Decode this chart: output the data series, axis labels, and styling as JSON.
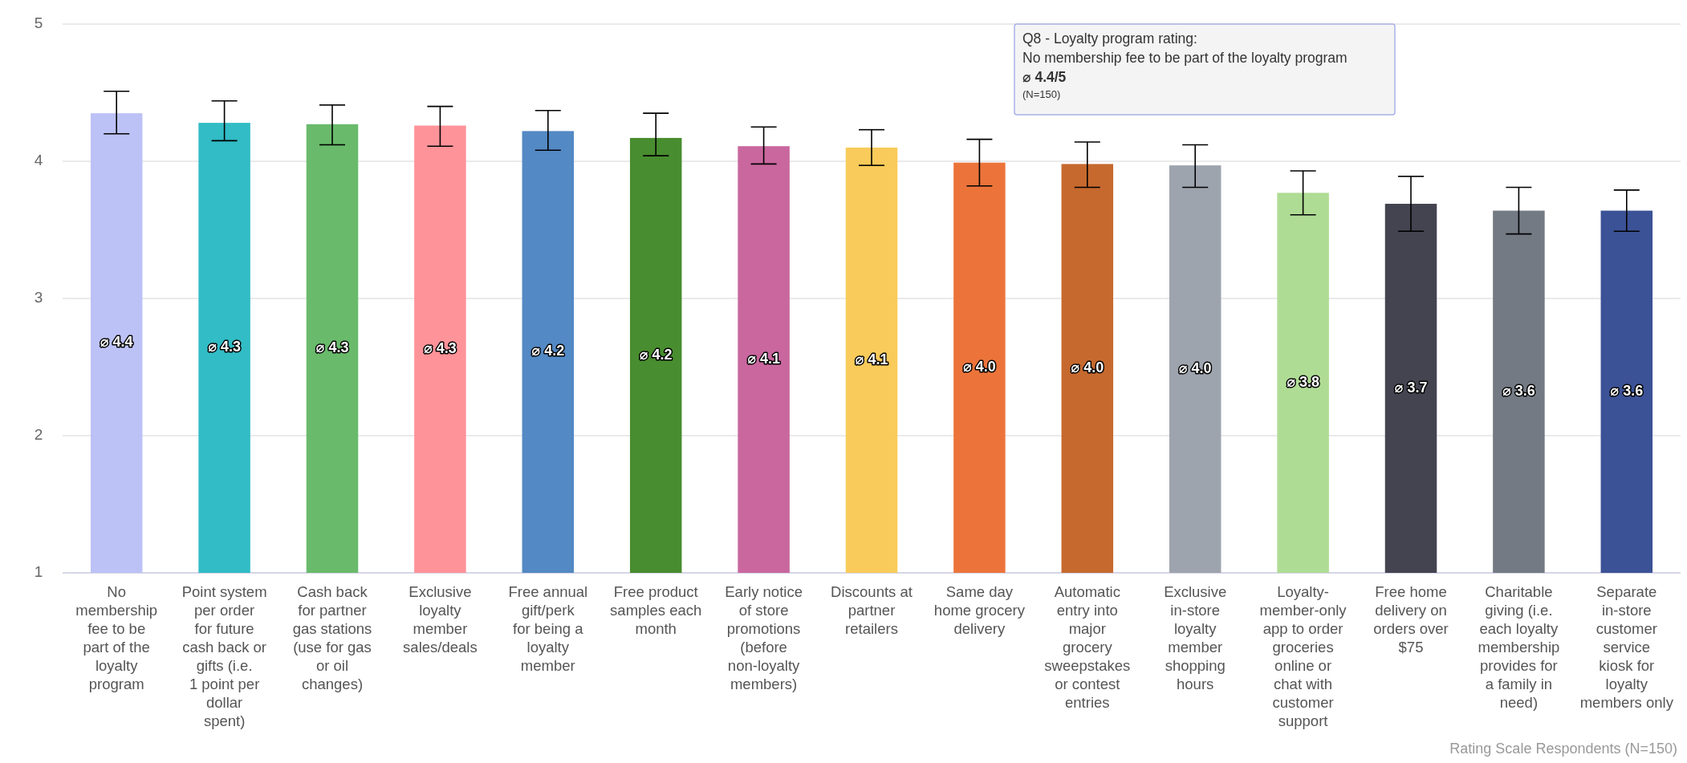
{
  "chart_data": {
    "type": "bar",
    "categories": [
      "No membership fee to be part of the loyalty program",
      "Point system per order for future cash back or gifts (i.e. 1 point per dollar spent)",
      "Cash back for partner gas stations (use for gas or oil changes)",
      "Exclusive loyalty member sales/deals",
      "Free annual gift/perk for being a loyalty member",
      "Free product samples each month",
      "Early notice of store promotions (before non-loyalty members)",
      "Discounts at partner retailers",
      "Same day home grocery delivery",
      "Automatic entry into major grocery sweepstakes or contest entries",
      "Exclusive in-store loyalty member shopping hours",
      "Loyalty-member-only app to order groceries online or chat with customer support",
      "Free home delivery on orders over $75",
      "Charitable giving (i.e. each loyalty membership provides for a family in need)",
      "Separate in-store customer service kiosk for loyalty members only"
    ],
    "values": [
      4.35,
      4.28,
      4.27,
      4.26,
      4.22,
      4.17,
      4.11,
      4.1,
      3.99,
      3.98,
      3.97,
      3.77,
      3.69,
      3.64,
      3.64
    ],
    "value_labels": [
      "⌀ 4.4",
      "⌀ 4.3",
      "⌀ 4.3",
      "⌀ 4.3",
      "⌀ 4.2",
      "⌀ 4.2",
      "⌀ 4.1",
      "⌀ 4.1",
      "⌀ 4.0",
      "⌀ 4.0",
      "⌀ 4.0",
      "⌀ 3.8",
      "⌀ 3.7",
      "⌀ 3.6",
      "⌀ 3.6"
    ],
    "errors": [
      [
        4.2,
        4.51
      ],
      [
        4.15,
        4.44
      ],
      [
        4.12,
        4.41
      ],
      [
        4.11,
        4.4
      ],
      [
        4.08,
        4.37
      ],
      [
        4.04,
        4.35
      ],
      [
        3.98,
        4.25
      ],
      [
        3.97,
        4.23
      ],
      [
        3.82,
        4.16
      ],
      [
        3.81,
        4.14
      ],
      [
        3.81,
        4.12
      ],
      [
        3.61,
        3.93
      ],
      [
        3.49,
        3.89
      ],
      [
        3.47,
        3.81
      ],
      [
        3.49,
        3.79
      ]
    ],
    "colors": [
      "#bcc2f5",
      "#31bcc6",
      "#69ba6b",
      "#fe9399",
      "#5389c4",
      "#488d2f",
      "#c9679e",
      "#f8cb5a",
      "#ec743a",
      "#c6692e",
      "#9ea4ae",
      "#afdc94",
      "#444451",
      "#737a84",
      "#3c5296"
    ],
    "ylim": [
      1,
      5
    ],
    "yticks": [
      1,
      2,
      3,
      4,
      5
    ],
    "grid": "y",
    "annotations": [
      "Q8 - Loyalty program rating:",
      "No membership fee to be part of the loyalty program",
      "⌀ 4.4/5",
      "(N=150)",
      "Rating Scale Respondents (N=150)"
    ]
  }
}
